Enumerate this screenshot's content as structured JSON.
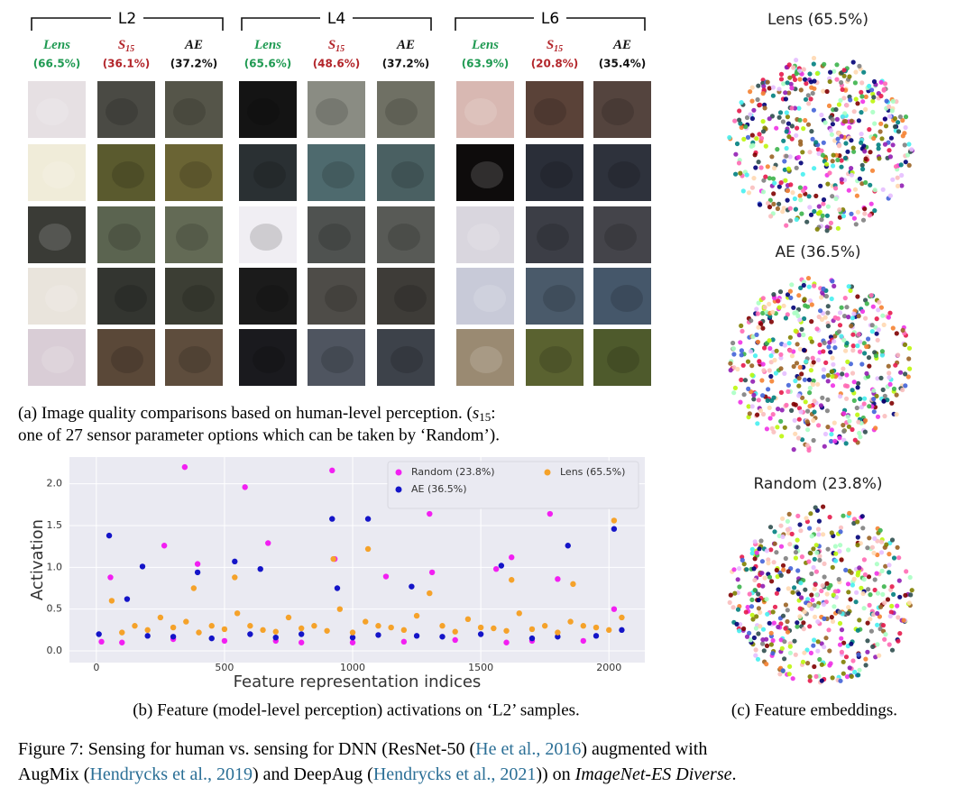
{
  "panel_a": {
    "groups": [
      {
        "label": "L2",
        "columns": [
          {
            "name": "Lens",
            "score": "(66.5%)"
          },
          {
            "name": "S",
            "sub": "15",
            "score": "(36.1%)"
          },
          {
            "name": "AE",
            "score": "(37.2%)"
          }
        ]
      },
      {
        "label": "L4",
        "columns": [
          {
            "name": "Lens",
            "score": "(65.6%)"
          },
          {
            "name": "S",
            "sub": "15",
            "score": "(48.6%)"
          },
          {
            "name": "AE",
            "score": "(37.2%)"
          }
        ]
      },
      {
        "label": "L6",
        "columns": [
          {
            "name": "Lens",
            "score": "(63.9%)"
          },
          {
            "name": "S",
            "sub": "15",
            "score": "(20.8%)"
          },
          {
            "name": "AE",
            "score": "(35.4%)"
          }
        ]
      }
    ],
    "caption": [
      "(a) Image quality comparisons based on human-level perception. (",
      "s",
      "15",
      ":",
      "one of 27 sensor parameter options which can be taken by ‘Random’)."
    ]
  },
  "chart_data": {
    "type": "scatter",
    "xlabel": "Feature representation indices",
    "ylabel": "Activation",
    "xlim": [
      -105,
      2140
    ],
    "ylim": [
      -0.14,
      2.32
    ],
    "xticks": [
      0,
      500,
      1000,
      1500,
      2000
    ],
    "yticks": [
      {
        "value": 0,
        "label": "0.0"
      },
      {
        "value": 0.5,
        "label": "0.5"
      },
      {
        "value": 1,
        "label": "1.0"
      },
      {
        "value": 1.5,
        "label": "1.5"
      },
      {
        "value": 2,
        "label": "2.0"
      }
    ],
    "grid": true,
    "legend": "upper right",
    "series": [
      {
        "name": "Random (23.8%)",
        "color": "#f21ff2",
        "x": [
          345,
          920,
          580,
          1300,
          1770,
          265,
          670,
          55,
          395,
          930,
          1130,
          1310,
          1560,
          1620,
          1800,
          2020,
          100,
          500,
          800,
          1200,
          1600,
          1900,
          300,
          1400,
          700,
          20,
          1000,
          1700
        ],
        "values": [
          2.2,
          2.16,
          1.96,
          1.64,
          1.64,
          1.26,
          1.29,
          0.88,
          1.04,
          1.1,
          0.89,
          0.94,
          0.98,
          1.12,
          0.86,
          0.5,
          0.1,
          0.12,
          0.1,
          0.11,
          0.1,
          0.12,
          0.14,
          0.13,
          0.12,
          0.11,
          0.1,
          0.12
        ]
      },
      {
        "name": "AE (36.5%)",
        "color": "#1414c8",
        "x": [
          50,
          920,
          1060,
          2020,
          1840,
          180,
          395,
          540,
          640,
          1580,
          1230,
          940,
          120,
          800,
          200,
          450,
          1000,
          1350,
          1700,
          1950,
          600,
          1500,
          2050,
          10,
          1100,
          300,
          700,
          1250,
          1800
        ],
        "values": [
          1.38,
          1.58,
          1.58,
          1.46,
          1.26,
          1.01,
          0.94,
          1.07,
          0.98,
          1.02,
          0.77,
          0.75,
          0.62,
          0.2,
          0.18,
          0.15,
          0.16,
          0.17,
          0.15,
          0.18,
          0.2,
          0.2,
          0.25,
          0.2,
          0.19,
          0.17,
          0.16,
          0.18,
          0.17
        ]
      },
      {
        "name": "Lens (65.5%)",
        "color": "#f5a22a",
        "x": [
          2020,
          1060,
          925,
          540,
          1300,
          1860,
          1620,
          380,
          60,
          150,
          250,
          350,
          450,
          550,
          650,
          750,
          850,
          950,
          1050,
          1150,
          1250,
          1350,
          1450,
          1550,
          1650,
          1750,
          1850,
          1950,
          2050,
          100,
          200,
          300,
          400,
          500,
          600,
          700,
          800,
          900,
          1000,
          1100,
          1200,
          1400,
          1500,
          1600,
          1700,
          1800,
          1900,
          2000
        ],
        "values": [
          1.56,
          1.22,
          1.1,
          0.88,
          0.69,
          0.8,
          0.85,
          0.75,
          0.6,
          0.3,
          0.4,
          0.35,
          0.3,
          0.45,
          0.25,
          0.4,
          0.3,
          0.5,
          0.35,
          0.28,
          0.42,
          0.3,
          0.38,
          0.27,
          0.45,
          0.3,
          0.35,
          0.28,
          0.4,
          0.22,
          0.25,
          0.28,
          0.22,
          0.26,
          0.3,
          0.23,
          0.27,
          0.24,
          0.22,
          0.3,
          0.25,
          0.23,
          0.28,
          0.24,
          0.26,
          0.22,
          0.3,
          0.25
        ]
      }
    ]
  },
  "panel_b_caption": "(b) Feature (model-level perception) activations on ‘L2’ samples.",
  "panel_c": {
    "titles": [
      "Lens (65.5%)",
      "AE (36.5%)",
      "Random (23.8%)"
    ],
    "caption": "(c) Feature embeddings."
  },
  "figure_caption": [
    "Figure 7: Sensing for human vs. sensing for DNN (ResNet-50 (",
    "He et al., 2016",
    ") augmented with",
    "AugMix (",
    "Hendrycks et al., 2019",
    ") and DeepAug (",
    "Hendrycks et al., 2021",
    ")) on ",
    "ImageNet-ES Diverse",
    "."
  ]
}
